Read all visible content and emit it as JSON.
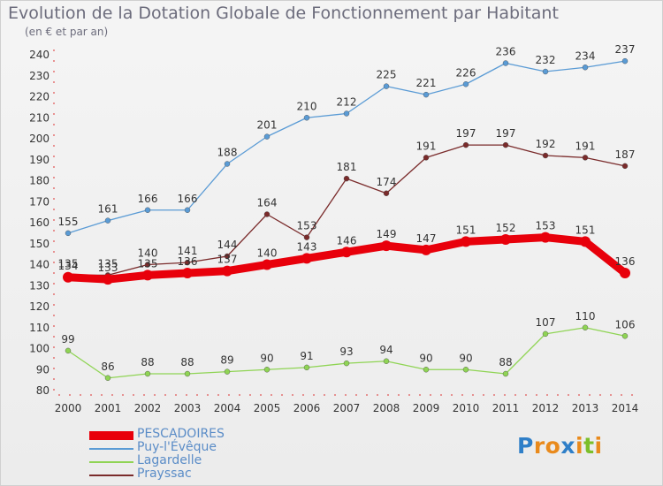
{
  "chart_data": {
    "type": "line",
    "title": "Evolution de la Dotation Globale de Fonctionnement par Habitant",
    "subtitle": "(en € et par an)",
    "x": [
      2000,
      2001,
      2002,
      2003,
      2004,
      2005,
      2006,
      2007,
      2008,
      2009,
      2010,
      2011,
      2012,
      2013,
      2014
    ],
    "ylim": [
      80,
      240
    ],
    "yticks": [
      80,
      90,
      100,
      110,
      120,
      130,
      140,
      150,
      160,
      170,
      180,
      190,
      200,
      210,
      220,
      230,
      240
    ],
    "grid": false,
    "legend": "bottom-left",
    "series": [
      {
        "name": "PESCADOIRES",
        "color": "#e8000b",
        "values": [
          134,
          133,
          135,
          136,
          137,
          140,
          143,
          146,
          149,
          147,
          151,
          152,
          153,
          151,
          136
        ]
      },
      {
        "name": "Puy-l'Évêque",
        "color": "#5a9bd5",
        "values": [
          155,
          161,
          166,
          166,
          188,
          201,
          210,
          212,
          225,
          221,
          226,
          236,
          232,
          234,
          237
        ]
      },
      {
        "name": "Lagardelle",
        "color": "#8fd454",
        "values": [
          99,
          86,
          88,
          88,
          89,
          90,
          91,
          93,
          94,
          90,
          90,
          88,
          107,
          110,
          106
        ]
      },
      {
        "name": "Prayssac",
        "color": "#7a2b2b",
        "values": [
          135,
          135,
          140,
          141,
          144,
          164,
          153,
          181,
          174,
          191,
          197,
          197,
          192,
          191,
          187
        ]
      }
    ]
  },
  "logo": {
    "letters": [
      "P",
      "r",
      "o",
      "x",
      "i",
      "t",
      "i"
    ],
    "colors": [
      "#2f7fc8",
      "#e98a1c",
      "#e98a1c",
      "#2f7fc8",
      "#e98a1c",
      "#7cbf2a",
      "#e98a1c"
    ]
  }
}
